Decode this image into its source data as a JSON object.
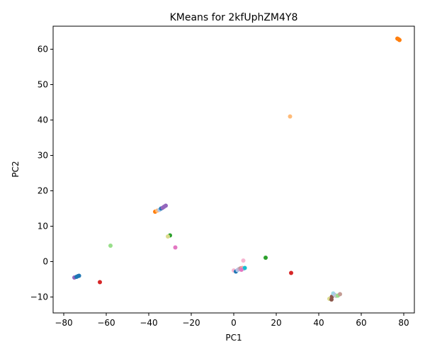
{
  "chart_data": {
    "type": "scatter",
    "title": "KMeans for 2kfUphZM4Y8",
    "xlabel": "PC1",
    "ylabel": "PC2",
    "xlim": [
      -85,
      85
    ],
    "ylim": [
      -14.5,
      66.5
    ],
    "xticks": [
      -80,
      -60,
      -40,
      -20,
      0,
      20,
      40,
      60,
      80
    ],
    "yticks": [
      -10,
      0,
      10,
      20,
      30,
      40,
      50,
      60
    ],
    "grid": false,
    "points": [
      {
        "x": 77.0,
        "y": 63.0,
        "color": "#ff7f0e"
      },
      {
        "x": 77.6,
        "y": 62.8,
        "color": "#ff7f0e"
      },
      {
        "x": 78.0,
        "y": 62.6,
        "color": "#ff7f0e"
      },
      {
        "x": 26.5,
        "y": 41.0,
        "color": "#ffbb78"
      },
      {
        "x": -37.0,
        "y": 14.1,
        "color": "#ff7f0e"
      },
      {
        "x": -36.0,
        "y": 14.4,
        "color": "#ffbb78"
      },
      {
        "x": -35.0,
        "y": 14.6,
        "color": "#aec7e8"
      },
      {
        "x": -34.2,
        "y": 15.0,
        "color": "#1f77b4"
      },
      {
        "x": -33.5,
        "y": 15.2,
        "color": "#9467bd"
      },
      {
        "x": -32.8,
        "y": 15.5,
        "color": "#9467bd"
      },
      {
        "x": -32.0,
        "y": 15.8,
        "color": "#9467bd"
      },
      {
        "x": -30.0,
        "y": 7.4,
        "color": "#2ca02c"
      },
      {
        "x": -31.0,
        "y": 7.1,
        "color": "#dbdb8d"
      },
      {
        "x": -58.0,
        "y": 4.5,
        "color": "#98df8a"
      },
      {
        "x": -27.5,
        "y": 4.0,
        "color": "#e377c2"
      },
      {
        "x": -75.0,
        "y": -4.5,
        "color": "#9467bd"
      },
      {
        "x": -74.0,
        "y": -4.3,
        "color": "#1f77b4"
      },
      {
        "x": -73.3,
        "y": -4.1,
        "color": "#1f77b4"
      },
      {
        "x": -72.8,
        "y": -4.0,
        "color": "#1f77b4"
      },
      {
        "x": -63.0,
        "y": -5.8,
        "color": "#d62728"
      },
      {
        "x": 15.0,
        "y": 1.1,
        "color": "#2ca02c"
      },
      {
        "x": 27.0,
        "y": -3.2,
        "color": "#d62728"
      },
      {
        "x": 4.5,
        "y": 0.3,
        "color": "#f7b6d2"
      },
      {
        "x": 0.0,
        "y": -2.5,
        "color": "#f7b6d2"
      },
      {
        "x": 1.0,
        "y": -2.8,
        "color": "#1f77b4"
      },
      {
        "x": 1.8,
        "y": -2.4,
        "color": "#aec7e8"
      },
      {
        "x": 2.5,
        "y": -2.1,
        "color": "#c5b0d5"
      },
      {
        "x": 3.2,
        "y": -1.9,
        "color": "#c49c94"
      },
      {
        "x": 4.0,
        "y": -1.8,
        "color": "#ff9896"
      },
      {
        "x": 4.6,
        "y": -2.0,
        "color": "#9edae5"
      },
      {
        "x": 5.2,
        "y": -1.8,
        "color": "#17becf"
      },
      {
        "x": 3.6,
        "y": -2.3,
        "color": "#e377c2"
      },
      {
        "x": 45.0,
        "y": -10.5,
        "color": "#dbdb8d"
      },
      {
        "x": 46.0,
        "y": -10.7,
        "color": "#8c564b"
      },
      {
        "x": 46.2,
        "y": -9.9,
        "color": "#8c564b"
      },
      {
        "x": 46.8,
        "y": -9.0,
        "color": "#9edae5"
      },
      {
        "x": 47.5,
        "y": -9.4,
        "color": "#aec7e8"
      },
      {
        "x": 48.2,
        "y": -9.7,
        "color": "#c7c7c7"
      },
      {
        "x": 49.0,
        "y": -9.6,
        "color": "#98df8a"
      },
      {
        "x": 50.0,
        "y": -9.2,
        "color": "#c49c94"
      }
    ]
  }
}
